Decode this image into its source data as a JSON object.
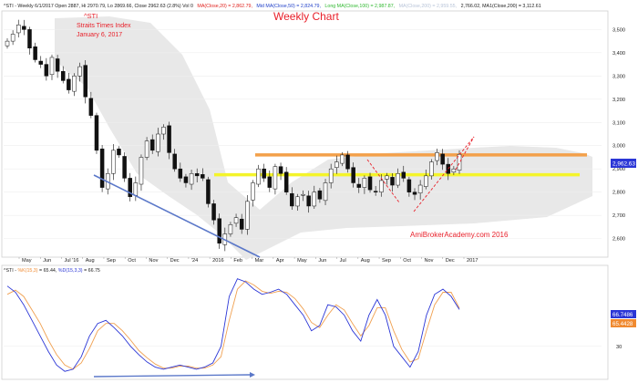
{
  "header": {
    "prefix": "^STI - Weekly 6/1/2017 Open 2887, Hi 2970.79, Lo 2869.66, Close 2962.63 (2.8%) Vol 0",
    "ma20": "MA(Close,20) = 2,862.79,",
    "ma50": "Mid MA(Close,50) = 2,824.79,",
    "ma100": "Long MA(Close,100) = 2,987.87,",
    "faded": "MA(Close,200) = 2,959.55,",
    "tail": "2,766.02, MA1(Close,200) = 3,112.61"
  },
  "colors": {
    "ma20": "#e0201c",
    "ma50": "#1f3fc8",
    "ma100": "#2fb82f",
    "faded": "#b8c4d8",
    "up_candle": "#ffffff",
    "down_candle": "#111111",
    "band": "#e8e8e8",
    "trend_blue": "#5b78c9",
    "support_yellow": "#f4f42a",
    "resist_orange": "#f3a04a",
    "red_note": "#e8202a",
    "k_line": "#2b36d6",
    "d_line": "#f0a050",
    "price_tag": "#2b36d6",
    "k_tag": "#2b36d6",
    "d_tag": "#f08a30"
  },
  "annotations": {
    "symbol": "^STI",
    "index_name": "Straits Times Index",
    "date": "January 6, 2017",
    "title": "Weekly Chart",
    "watermark": "AmiBrokerAcademy.com  2016"
  },
  "price_tag": "2,962.63",
  "stoch_header": {
    "prefix": "^STI - ",
    "k_label": "%K(15,3)",
    "k_val": " = 65.44, ",
    "d_label": "%D(15,3,3)",
    "d_val": " = 66.75"
  },
  "stoch_tags": {
    "d": "66.7486",
    "k": "65.4428"
  },
  "chart_data": [
    {
      "type": "candlestick",
      "x_axis_labels": [
        "May",
        "Jun",
        "Jul '16",
        "Aug",
        "Sep",
        "Oct",
        "Nov",
        "Dec",
        "'24",
        "2016",
        "Feb",
        "Mar",
        "Apr",
        "May",
        "Jun",
        "Jul",
        "Aug",
        "Sep",
        "Oct",
        "Nov",
        "Dec",
        "2017"
      ],
      "y_ticks": [
        2600,
        2700,
        2800,
        2900,
        3000,
        3100,
        3200,
        3300,
        3400,
        3500
      ],
      "ylim": [
        2520,
        3580
      ],
      "closes": [
        3450,
        3480,
        3520,
        3500,
        3420,
        3370,
        3350,
        3300,
        3380,
        3320,
        3280,
        3240,
        3300,
        3340,
        3210,
        3130,
        2980,
        2820,
        2880,
        2980,
        2960,
        2860,
        2780,
        2840,
        2950,
        3020,
        2980,
        3050,
        3080,
        2970,
        2900,
        2860,
        2840,
        2880,
        2870,
        2860,
        2750,
        2680,
        2580,
        2620,
        2660,
        2690,
        2640,
        2760,
        2840,
        2900,
        2860,
        2820,
        2910,
        2880,
        2800,
        2740,
        2780,
        2790,
        2740,
        2800,
        2770,
        2840,
        2900,
        2930,
        2960,
        2900,
        2840,
        2820,
        2860,
        2810,
        2800,
        2850,
        2870,
        2830,
        2880,
        2860,
        2800,
        2790,
        2830,
        2870,
        2930,
        2970,
        2920,
        2880,
        2900,
        2962.63
      ],
      "support_level": 2875,
      "resistance_level": 2960
    },
    {
      "type": "line",
      "name": "Stochastic",
      "ylim": [
        0,
        100
      ],
      "y_ticks": [
        30
      ],
      "series": [
        {
          "name": "%K(15,3)",
          "values": [
            88,
            82,
            70,
            55,
            40,
            25,
            12,
            6,
            8,
            20,
            40,
            52,
            55,
            48,
            40,
            30,
            22,
            15,
            10,
            8,
            10,
            12,
            10,
            8,
            10,
            14,
            30,
            78,
            95,
            92,
            85,
            80,
            82,
            85,
            80,
            70,
            60,
            45,
            50,
            70,
            68,
            60,
            45,
            35,
            60,
            75,
            60,
            30,
            20,
            10,
            25,
            60,
            80,
            85,
            78,
            65.44
          ]
        },
        {
          "name": "%D(15,3,3)",
          "values": [
            80,
            84,
            78,
            65,
            52,
            36,
            22,
            12,
            8,
            14,
            28,
            45,
            52,
            52,
            45,
            36,
            26,
            19,
            13,
            9,
            9,
            11,
            11,
            9,
            9,
            12,
            20,
            55,
            85,
            93,
            89,
            83,
            81,
            83,
            82,
            76,
            66,
            53,
            48,
            60,
            70,
            65,
            52,
            40,
            50,
            67,
            67,
            45,
            27,
            15,
            18,
            45,
            70,
            82,
            82,
            66.75
          ]
        }
      ]
    }
  ]
}
